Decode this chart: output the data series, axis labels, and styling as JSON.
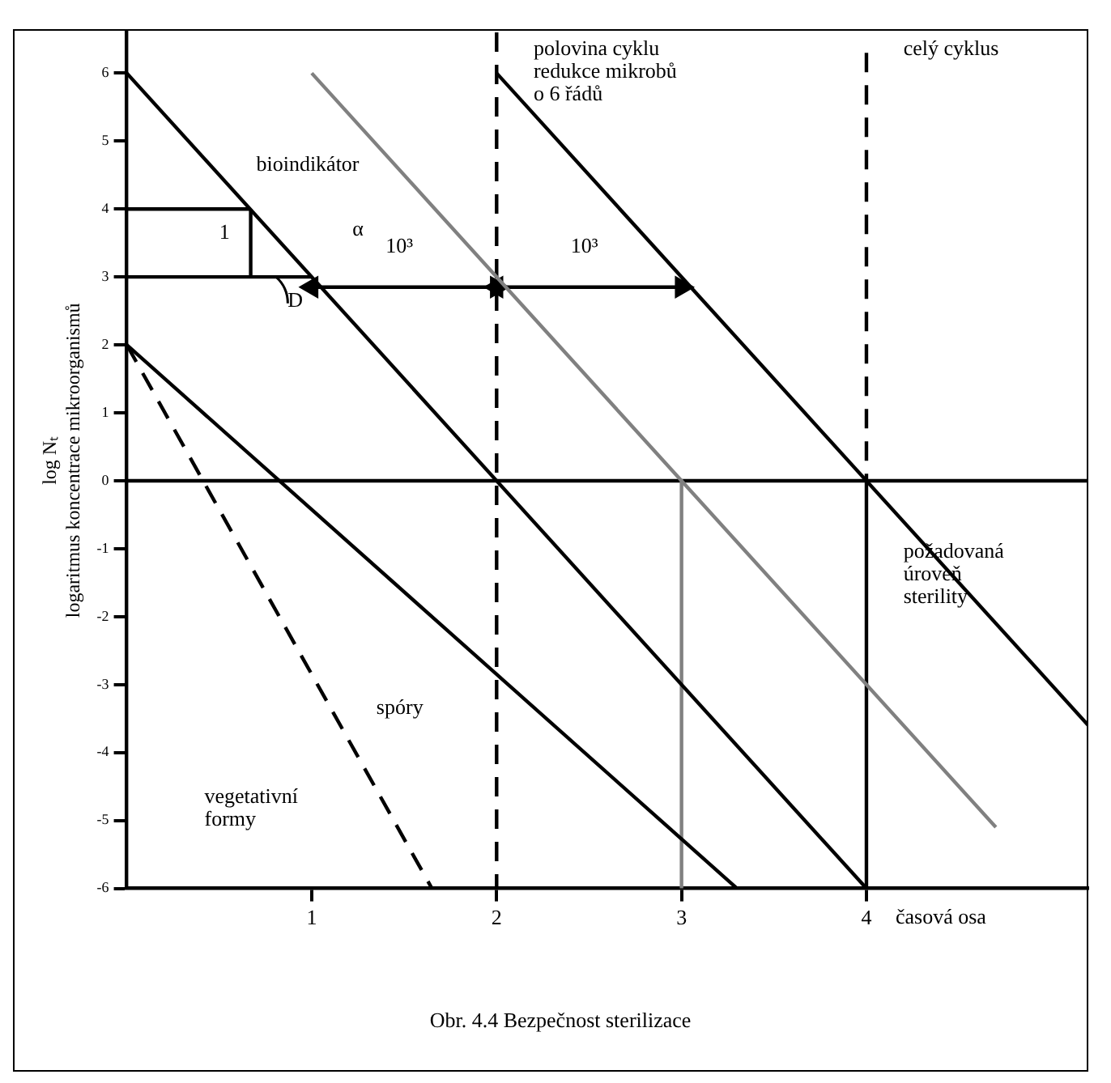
{
  "chart_data": {
    "type": "line",
    "title": "Obr. 4.4 Bezpečnost sterilizace",
    "xlabel": "časová osa",
    "ylabel": "log Nₜ\nlogaritmus koncentrace mikroorganismů",
    "xlim": [
      0,
      5.2
    ],
    "xticks": [
      1,
      2,
      3,
      4
    ],
    "ylim": [
      -6,
      6.6
    ],
    "yticks": [
      -6,
      -5,
      -4,
      -3,
      -2,
      -1,
      0,
      1,
      2,
      3,
      4,
      5,
      6
    ],
    "grid": false,
    "legend": false,
    "marker": "none",
    "line_style": "solid",
    "series": [
      {
        "color": "#000000",
        "x": [
          0,
          4
        ],
        "values": [
          6,
          -6
        ]
      },
      {
        "color": "#808080",
        "x": [
          1,
          4.7
        ],
        "values": [
          6,
          -5.1
        ]
      },
      {
        "color": "#000000",
        "x": [
          2,
          5.2
        ],
        "values": [
          6,
          -3.6
        ]
      },
      {
        "color": "#000000",
        "x": [
          0,
          3.3
        ],
        "values": [
          2,
          -6
        ]
      },
      {
        "color": "#000000",
        "x": [
          0,
          1.65
        ],
        "values": [
          2,
          -6
        ],
        "line_style": "dashed"
      },
      {
        "color": "#000000",
        "x": [
          4,
          4
        ],
        "values": [
          6.3,
          0
        ],
        "line_style": "dashed"
      },
      {
        "color": "#000000",
        "x": [
          4,
          4
        ],
        "values": [
          0,
          -6
        ]
      },
      {
        "color": "#808080",
        "x": [
          3,
          3
        ],
        "values": [
          0,
          -6
        ]
      },
      {
        "color": "#000000",
        "x": [
          0,
          0.67
        ],
        "values": [
          4,
          4
        ]
      },
      {
        "color": "#000000",
        "x": [
          0,
          1
        ],
        "values": [
          3,
          3
        ]
      },
      {
        "color": "#000000",
        "x": [
          0.67,
          0.67
        ],
        "values": [
          3,
          4
        ]
      },
      {
        "color": "#000000",
        "x": [
          1,
          2
        ],
        "values": [
          2.85,
          2.85
        ],
        "marker": "triangle"
      },
      {
        "color": "#000000",
        "x": [
          2,
          3
        ],
        "values": [
          2.85,
          2.85
        ],
        "marker": "triangle"
      }
    ],
    "ref_lines": [
      {
        "axis": "y",
        "value": 0,
        "color": "#000000",
        "line_style": "solid"
      },
      {
        "axis": "x",
        "value": 2,
        "color": "#000000",
        "line_style": "dashed"
      }
    ],
    "annotations": [
      "bioindikátor",
      "1",
      "α",
      "D",
      "10³",
      "10³",
      "polovina cyklu\nredukce mikrobů\no 6 řádů",
      "celý cyklus",
      "požadovaná\núroveň\nsterility",
      "spóry",
      "vegetativní\nformy"
    ]
  }
}
